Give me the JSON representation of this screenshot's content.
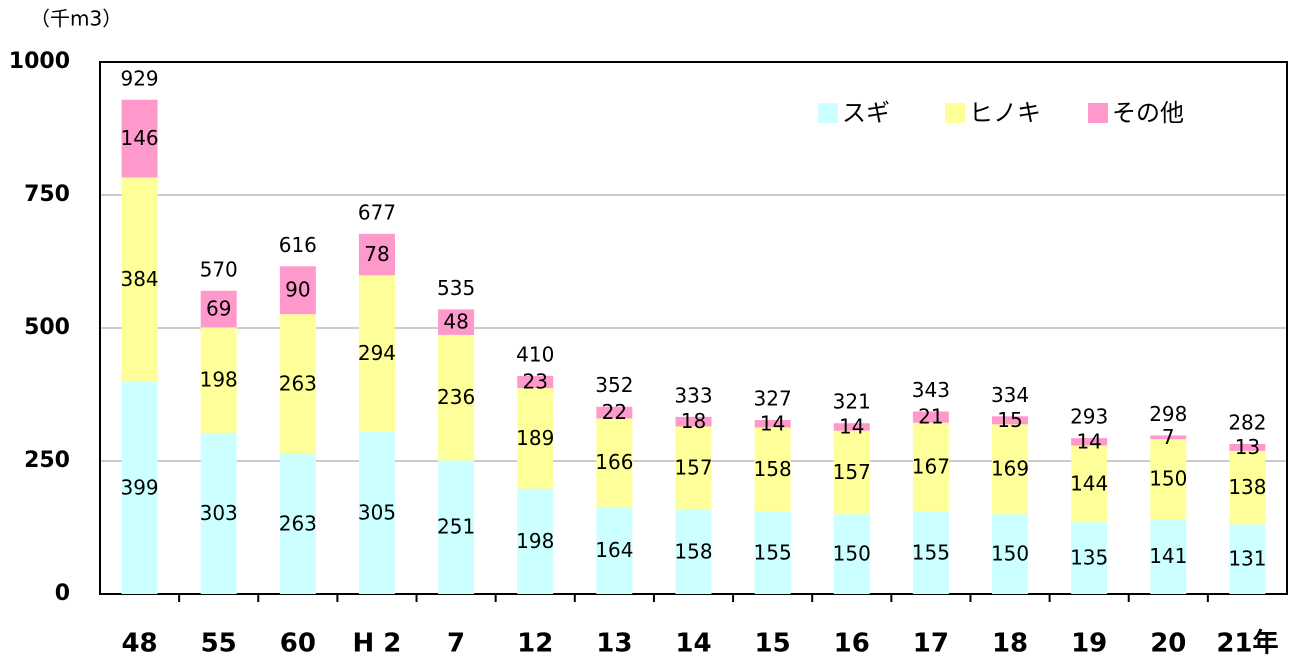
{
  "chart_data": {
    "type": "bar",
    "stacked": true,
    "unit_label": "（千m3）",
    "categories": [
      "48",
      "55",
      "60",
      "H 2",
      "7",
      "12",
      "13",
      "14",
      "15",
      "16",
      "17",
      "18",
      "19",
      "20",
      "21年"
    ],
    "series": [
      {
        "name": "スギ",
        "color": "#ccffff",
        "values": [
          399,
          303,
          263,
          305,
          251,
          198,
          164,
          158,
          155,
          150,
          155,
          150,
          135,
          141,
          131
        ]
      },
      {
        "name": "ヒノキ",
        "color": "#ffff99",
        "values": [
          384,
          198,
          263,
          294,
          236,
          189,
          166,
          157,
          158,
          157,
          167,
          169,
          144,
          150,
          138
        ]
      },
      {
        "name": "その他",
        "color": "#ff99cc",
        "values": [
          146,
          69,
          90,
          78,
          48,
          23,
          22,
          18,
          14,
          14,
          21,
          15,
          14,
          7,
          13
        ]
      }
    ],
    "totals": [
      929,
      570,
      616,
      677,
      535,
      410,
      352,
      333,
      327,
      321,
      343,
      334,
      293,
      298,
      282
    ],
    "ylim": [
      0,
      1000
    ],
    "yticks": [
      0,
      250,
      500,
      750,
      1000
    ],
    "grid": true,
    "legend": "top-right"
  }
}
